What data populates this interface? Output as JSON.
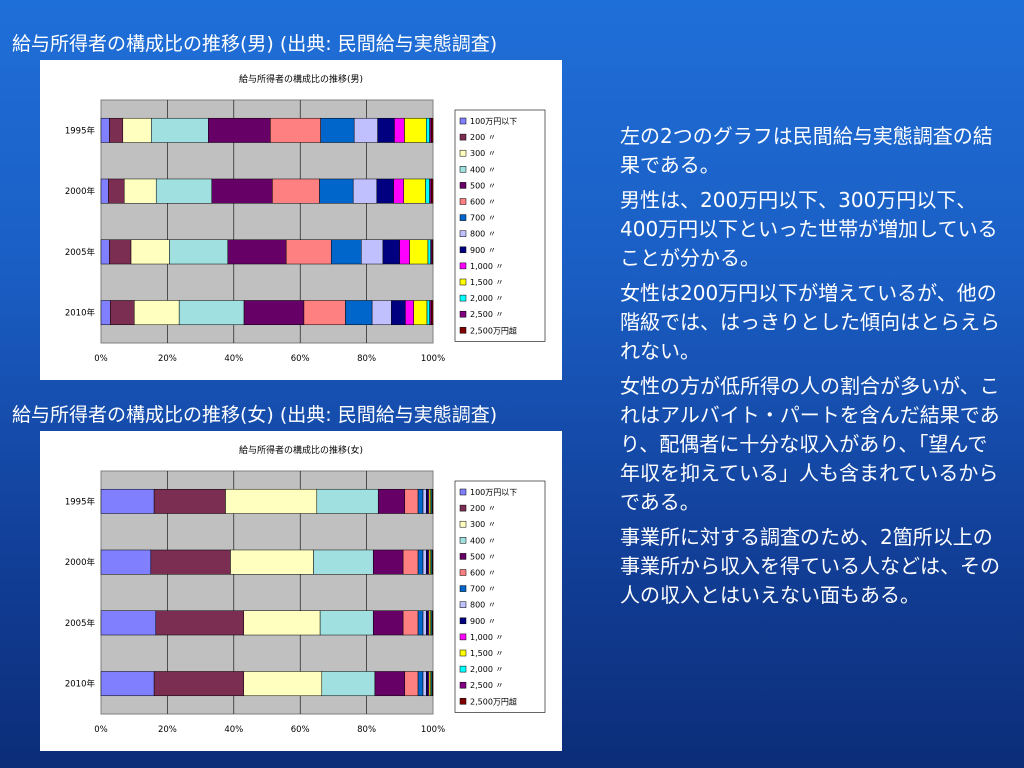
{
  "titles": {
    "male": "給与所得者の構成比の推移(男) (出典: 民間給与実態調査)",
    "female": "給与所得者の構成比の推移(女) (出典: 民間給与実態調査)"
  },
  "body": {
    "paragraphs": [
      "左の2つのグラフは民間給与実態調査の結果である。",
      "男性は、200万円以下、300万円以下、400万円以下といった世帯が増加していることが分かる。",
      "女性は200万円以下が増えているが、他の階級では、はっきりとした傾向はとらえられない。",
      "女性の方が低所得の人の割合が多いが、これはアルバイト・パートを含んだ結果であり、配偶者に十分な収入があり、「望んで年収を抑えている」人も含まれているからである。",
      "事業所に対する調査のため、2箇所以上の事業所から収入を得ている人などは、その人の収入とはいえない面もある。"
    ]
  },
  "chart_data": [
    {
      "type": "bar",
      "orientation": "horizontal",
      "stacked": "percent",
      "title": "給与所得者の構成比の推移(男)",
      "categories": [
        "1995年",
        "2000年",
        "2005年",
        "2010年"
      ],
      "xticks": [
        "0%",
        "20%",
        "40%",
        "60%",
        "80%",
        "100%"
      ],
      "xlim": [
        0,
        100
      ],
      "legend_position": "right",
      "series": [
        {
          "name": "100万円以下",
          "color": "#8080ff",
          "values": [
            2.5,
            2.2,
            2.5,
            2.8
          ]
        },
        {
          "name": "200 〃",
          "color": "#7b2d52",
          "values": [
            4.0,
            4.7,
            6.5,
            7.2
          ]
        },
        {
          "name": "300 〃",
          "color": "#ffffc0",
          "values": [
            8.5,
            9.5,
            11.5,
            13.5
          ]
        },
        {
          "name": "400 〃",
          "color": "#a0e0e0",
          "values": [
            17.0,
            16.5,
            17.5,
            19.5
          ]
        },
        {
          "name": "500 〃",
          "color": "#660066",
          "values": [
            18.5,
            18.0,
            17.5,
            18.0
          ]
        },
        {
          "name": "600 〃",
          "color": "#ff8080",
          "values": [
            15.0,
            14.0,
            13.5,
            12.5
          ]
        },
        {
          "name": "700 〃",
          "color": "#0066cc",
          "values": [
            10.0,
            10.0,
            9.0,
            8.0
          ]
        },
        {
          "name": "800 〃",
          "color": "#c0c0ff",
          "values": [
            7.0,
            7.0,
            6.5,
            5.8
          ]
        },
        {
          "name": "900 〃",
          "color": "#000080",
          "values": [
            5.0,
            5.0,
            5.0,
            4.2
          ]
        },
        {
          "name": "1,000 〃",
          "color": "#ff00ff",
          "values": [
            3.0,
            3.0,
            3.0,
            2.5
          ]
        },
        {
          "name": "1,500 〃",
          "color": "#ffff00",
          "values": [
            6.5,
            6.5,
            5.5,
            4.0
          ]
        },
        {
          "name": "2,000 〃",
          "color": "#00ffff",
          "values": [
            1.0,
            1.2,
            0.8,
            0.8
          ]
        },
        {
          "name": "2,500 〃",
          "color": "#800080",
          "values": [
            0.5,
            0.5,
            0.4,
            0.5
          ]
        },
        {
          "name": "2,500万円超",
          "color": "#800000",
          "values": [
            0.5,
            0.5,
            0.3,
            0.5
          ]
        }
      ]
    },
    {
      "type": "bar",
      "orientation": "horizontal",
      "stacked": "percent",
      "title": "給与所得者の構成比の推移(女)",
      "categories": [
        "1995年",
        "2000年",
        "2005年",
        "2010年"
      ],
      "xticks": [
        "0%",
        "20%",
        "40%",
        "60%",
        "80%",
        "100%"
      ],
      "xlim": [
        0,
        100
      ],
      "legend_position": "right",
      "series": [
        {
          "name": "100万円以下",
          "color": "#8080ff",
          "values": [
            16.0,
            15.0,
            16.5,
            16.0
          ]
        },
        {
          "name": "200 〃",
          "color": "#7b2d52",
          "values": [
            21.5,
            24.0,
            26.5,
            27.0
          ]
        },
        {
          "name": "300 〃",
          "color": "#ffffc0",
          "values": [
            27.5,
            25.0,
            23.0,
            23.5
          ]
        },
        {
          "name": "400 〃",
          "color": "#a0e0e0",
          "values": [
            18.5,
            18.0,
            16.0,
            16.0
          ]
        },
        {
          "name": "500 〃",
          "color": "#660066",
          "values": [
            8.0,
            9.0,
            9.0,
            9.0
          ]
        },
        {
          "name": "600 〃",
          "color": "#ff8080",
          "values": [
            4.0,
            4.5,
            4.5,
            4.0
          ]
        },
        {
          "name": "700 〃",
          "color": "#0066cc",
          "values": [
            1.5,
            1.5,
            1.5,
            1.5
          ]
        },
        {
          "name": "800 〃",
          "color": "#c0c0ff",
          "values": [
            1.0,
            1.0,
            1.0,
            1.0
          ]
        },
        {
          "name": "900 〃",
          "color": "#000080",
          "values": [
            0.5,
            0.5,
            0.5,
            0.5
          ]
        },
        {
          "name": "1,000 〃",
          "color": "#ff00ff",
          "values": [
            0.3,
            0.3,
            0.3,
            0.3
          ]
        },
        {
          "name": "1,500 〃",
          "color": "#ffff00",
          "values": [
            0.5,
            0.5,
            0.5,
            0.5
          ]
        },
        {
          "name": "2,000 〃",
          "color": "#00ffff",
          "values": [
            0.3,
            0.3,
            0.3,
            0.3
          ]
        },
        {
          "name": "2,500 〃",
          "color": "#800080",
          "values": [
            0.2,
            0.2,
            0.2,
            0.2
          ]
        },
        {
          "name": "2,500万円超",
          "color": "#800000",
          "values": [
            0.2,
            0.2,
            0.2,
            0.2
          ]
        }
      ]
    }
  ]
}
